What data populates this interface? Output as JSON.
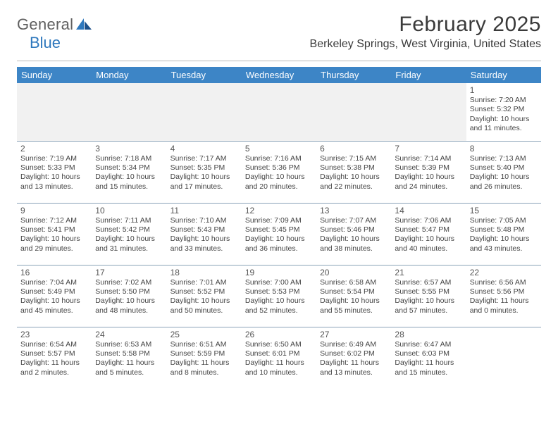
{
  "brand": {
    "word1": "General",
    "word2": "Blue"
  },
  "title": "February 2025",
  "location": "Berkeley Springs, West Virginia, United States",
  "colors": {
    "header_bg": "#3d85c6",
    "header_text": "#ffffff",
    "row_border": "#8aa3b8",
    "empty_bg": "#f1f1f1",
    "logo_gray": "#5f5f5f",
    "logo_blue": "#2f78bd",
    "text": "#3a3a3a"
  },
  "day_headers": [
    "Sunday",
    "Monday",
    "Tuesday",
    "Wednesday",
    "Thursday",
    "Friday",
    "Saturday"
  ],
  "weeks": [
    [
      null,
      null,
      null,
      null,
      null,
      null,
      {
        "n": "1",
        "sunrise": "7:20 AM",
        "sunset": "5:32 PM",
        "daylight": "10 hours and 11 minutes."
      }
    ],
    [
      {
        "n": "2",
        "sunrise": "7:19 AM",
        "sunset": "5:33 PM",
        "daylight": "10 hours and 13 minutes."
      },
      {
        "n": "3",
        "sunrise": "7:18 AM",
        "sunset": "5:34 PM",
        "daylight": "10 hours and 15 minutes."
      },
      {
        "n": "4",
        "sunrise": "7:17 AM",
        "sunset": "5:35 PM",
        "daylight": "10 hours and 17 minutes."
      },
      {
        "n": "5",
        "sunrise": "7:16 AM",
        "sunset": "5:36 PM",
        "daylight": "10 hours and 20 minutes."
      },
      {
        "n": "6",
        "sunrise": "7:15 AM",
        "sunset": "5:38 PM",
        "daylight": "10 hours and 22 minutes."
      },
      {
        "n": "7",
        "sunrise": "7:14 AM",
        "sunset": "5:39 PM",
        "daylight": "10 hours and 24 minutes."
      },
      {
        "n": "8",
        "sunrise": "7:13 AM",
        "sunset": "5:40 PM",
        "daylight": "10 hours and 26 minutes."
      }
    ],
    [
      {
        "n": "9",
        "sunrise": "7:12 AM",
        "sunset": "5:41 PM",
        "daylight": "10 hours and 29 minutes."
      },
      {
        "n": "10",
        "sunrise": "7:11 AM",
        "sunset": "5:42 PM",
        "daylight": "10 hours and 31 minutes."
      },
      {
        "n": "11",
        "sunrise": "7:10 AM",
        "sunset": "5:43 PM",
        "daylight": "10 hours and 33 minutes."
      },
      {
        "n": "12",
        "sunrise": "7:09 AM",
        "sunset": "5:45 PM",
        "daylight": "10 hours and 36 minutes."
      },
      {
        "n": "13",
        "sunrise": "7:07 AM",
        "sunset": "5:46 PM",
        "daylight": "10 hours and 38 minutes."
      },
      {
        "n": "14",
        "sunrise": "7:06 AM",
        "sunset": "5:47 PM",
        "daylight": "10 hours and 40 minutes."
      },
      {
        "n": "15",
        "sunrise": "7:05 AM",
        "sunset": "5:48 PM",
        "daylight": "10 hours and 43 minutes."
      }
    ],
    [
      {
        "n": "16",
        "sunrise": "7:04 AM",
        "sunset": "5:49 PM",
        "daylight": "10 hours and 45 minutes."
      },
      {
        "n": "17",
        "sunrise": "7:02 AM",
        "sunset": "5:50 PM",
        "daylight": "10 hours and 48 minutes."
      },
      {
        "n": "18",
        "sunrise": "7:01 AM",
        "sunset": "5:52 PM",
        "daylight": "10 hours and 50 minutes."
      },
      {
        "n": "19",
        "sunrise": "7:00 AM",
        "sunset": "5:53 PM",
        "daylight": "10 hours and 52 minutes."
      },
      {
        "n": "20",
        "sunrise": "6:58 AM",
        "sunset": "5:54 PM",
        "daylight": "10 hours and 55 minutes."
      },
      {
        "n": "21",
        "sunrise": "6:57 AM",
        "sunset": "5:55 PM",
        "daylight": "10 hours and 57 minutes."
      },
      {
        "n": "22",
        "sunrise": "6:56 AM",
        "sunset": "5:56 PM",
        "daylight": "11 hours and 0 minutes."
      }
    ],
    [
      {
        "n": "23",
        "sunrise": "6:54 AM",
        "sunset": "5:57 PM",
        "daylight": "11 hours and 2 minutes."
      },
      {
        "n": "24",
        "sunrise": "6:53 AM",
        "sunset": "5:58 PM",
        "daylight": "11 hours and 5 minutes."
      },
      {
        "n": "25",
        "sunrise": "6:51 AM",
        "sunset": "5:59 PM",
        "daylight": "11 hours and 8 minutes."
      },
      {
        "n": "26",
        "sunrise": "6:50 AM",
        "sunset": "6:01 PM",
        "daylight": "11 hours and 10 minutes."
      },
      {
        "n": "27",
        "sunrise": "6:49 AM",
        "sunset": "6:02 PM",
        "daylight": "11 hours and 13 minutes."
      },
      {
        "n": "28",
        "sunrise": "6:47 AM",
        "sunset": "6:03 PM",
        "daylight": "11 hours and 15 minutes."
      },
      null
    ]
  ],
  "labels": {
    "sunrise": "Sunrise:",
    "sunset": "Sunset:",
    "daylight": "Daylight:"
  }
}
